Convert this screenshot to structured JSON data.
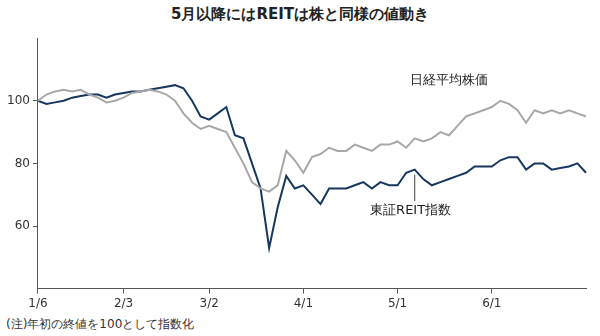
{
  "chart_data": {
    "type": "line",
    "title": "5月以降にはREITは株と同様の値動き",
    "annotations": [
      "(注)年初の終値を100として指数化"
    ],
    "categories": [
      "1/6",
      null,
      null,
      null,
      null,
      null,
      null,
      null,
      null,
      null,
      "2/3",
      null,
      null,
      null,
      null,
      null,
      null,
      null,
      null,
      null,
      "3/2",
      null,
      null,
      null,
      null,
      null,
      null,
      null,
      null,
      null,
      null,
      "4/1",
      null,
      null,
      null,
      null,
      null,
      null,
      null,
      null,
      null,
      null,
      "5/1",
      null,
      null,
      null,
      null,
      null,
      null,
      null,
      null,
      null,
      null,
      "6/1",
      null,
      null,
      null,
      null,
      null,
      null,
      null,
      null,
      null,
      null,
      null
    ],
    "series": [
      {
        "name": "日経平均株価",
        "color": "#a8a8a8",
        "values": [
          100,
          102,
          103,
          103.5,
          103,
          103.5,
          102,
          101,
          99.5,
          100,
          101,
          102.5,
          103,
          103.5,
          103,
          102,
          100,
          96,
          93,
          91,
          92,
          91,
          90,
          85,
          80,
          74,
          72,
          71,
          73,
          84,
          81,
          77,
          82,
          83,
          85,
          84,
          84,
          86,
          85,
          84,
          86,
          86,
          87,
          85,
          88,
          87,
          88,
          90,
          89,
          92,
          95,
          96,
          97,
          98,
          100,
          99,
          97,
          93,
          97,
          96,
          97,
          96,
          97,
          96,
          95
        ]
      },
      {
        "name": "東証REIT指数",
        "color": "#17375e",
        "values": [
          100,
          99,
          99.5,
          100,
          101,
          101.5,
          102,
          102,
          101,
          102,
          102.5,
          103,
          103,
          103.5,
          104,
          104.5,
          105,
          104,
          100,
          95,
          94,
          96,
          98,
          89,
          88,
          80,
          72,
          53,
          66,
          76,
          72,
          73,
          70,
          67,
          72,
          72,
          72,
          73,
          74,
          72,
          74,
          73,
          73,
          77,
          78,
          75,
          73,
          74,
          75,
          76,
          77,
          79,
          79,
          79,
          81,
          82,
          82,
          78,
          80,
          80,
          78,
          78.5,
          79,
          80,
          77
        ]
      }
    ],
    "ylim": [
      40,
      120
    ],
    "yticks": [
      60,
      80,
      100
    ],
    "grid": false
  }
}
